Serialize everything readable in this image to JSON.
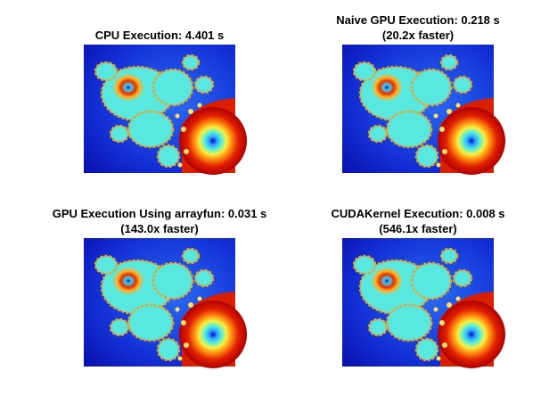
{
  "panels": [
    {
      "title_lines": [
        "CPU Execution: 4.401 s"
      ]
    },
    {
      "title_lines": [
        "Naive GPU Execution: 0.218 s",
        "(20.2x faster)"
      ]
    },
    {
      "title_lines": [
        "GPU Execution Using arrayfun: 0.031 s",
        "(143.0x faster)"
      ]
    },
    {
      "title_lines": [
        "CUDAKernel Execution: 0.008 s",
        "(546.1x faster)"
      ]
    }
  ]
}
